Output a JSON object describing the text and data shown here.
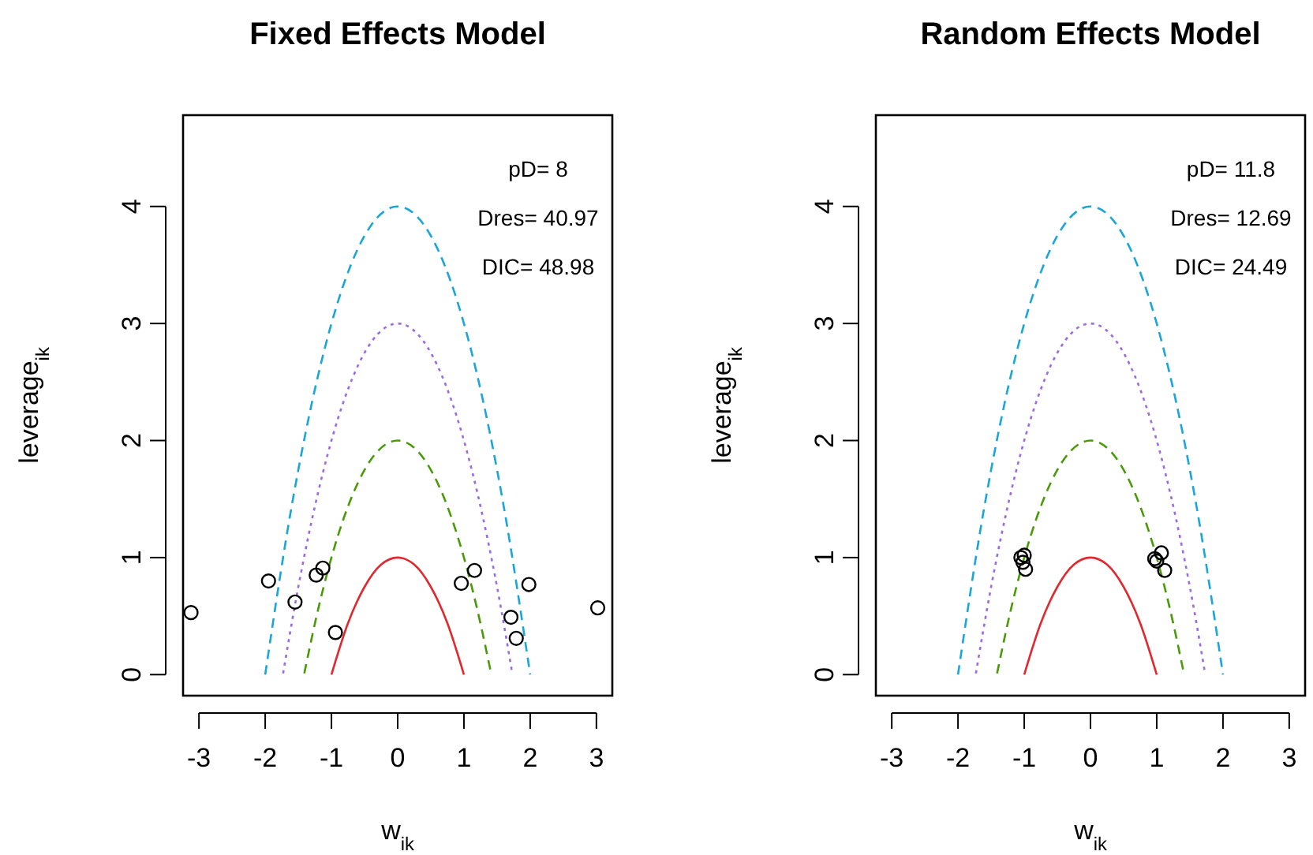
{
  "chart_data": [
    {
      "type": "scatter",
      "title": "Fixed Effects Model",
      "xlabel": "w$_{ik}$",
      "ylabel": "leverage$_{ik}$",
      "xlim": [
        -3.24,
        3.24
      ],
      "ylim": [
        -0.18,
        4.78
      ],
      "xticks": [
        -3,
        -2,
        -1,
        0,
        1,
        2,
        3
      ],
      "yticks": [
        0,
        1,
        2,
        3,
        4
      ],
      "annotations": [
        "pD= 8",
        "Dres= 40.97",
        "DIC= 48.98"
      ],
      "series": [
        {
          "type": "line",
          "color": "#e0282e",
          "line_style": "solid",
          "x": [
            -1,
            -0.75,
            -0.5,
            -0.25,
            0,
            0.25,
            0.5,
            0.75,
            1
          ],
          "values": [
            0,
            0.44,
            0.75,
            0.94,
            1,
            0.94,
            0.75,
            0.44,
            0
          ]
        },
        {
          "type": "line",
          "color": "#4a9a08",
          "line_style": "dashed",
          "x": [
            -1.41,
            -1.2,
            -0.9,
            -0.6,
            -0.3,
            0,
            0.3,
            0.6,
            0.9,
            1.2,
            1.41
          ],
          "values": [
            0.01,
            0.56,
            1.19,
            1.64,
            1.91,
            2,
            1.91,
            1.64,
            1.19,
            0.56,
            0.01
          ]
        },
        {
          "type": "line",
          "color": "#9b6be0",
          "line_style": "dotted",
          "x": [
            -1.73,
            -1.5,
            -1.2,
            -0.9,
            -0.6,
            -0.3,
            0,
            0.3,
            0.6,
            0.9,
            1.2,
            1.5,
            1.73
          ],
          "values": [
            0.01,
            0.75,
            1.56,
            2.19,
            2.64,
            2.91,
            3,
            2.91,
            2.64,
            2.19,
            1.56,
            0.75,
            0.01
          ]
        },
        {
          "type": "line",
          "color": "#1aa6d8",
          "line_style": "dashed",
          "x": [
            -2,
            -1.6,
            -1.2,
            -0.8,
            -0.4,
            0,
            0.4,
            0.8,
            1.2,
            1.6,
            2
          ],
          "values": [
            0,
            1.44,
            2.56,
            3.36,
            3.84,
            4,
            3.84,
            3.36,
            2.56,
            1.44,
            0
          ]
        },
        {
          "color": "#000000",
          "marker": "circle",
          "x": [
            -3.12,
            -1.95,
            -1.55,
            -1.23,
            -1.13,
            -0.94,
            0.96,
            1.16,
            1.98,
            1.71,
            1.79,
            3.02
          ],
          "values": [
            0.53,
            0.8,
            0.62,
            0.85,
            0.91,
            0.36,
            0.78,
            0.89,
            0.77,
            0.49,
            0.31,
            0.57
          ]
        }
      ]
    },
    {
      "type": "scatter",
      "title": "Random Effects Model",
      "xlabel": "w$_{ik}$",
      "ylabel": "leverage$_{ik}$",
      "xlim": [
        -3.24,
        3.24
      ],
      "ylim": [
        -0.18,
        4.78
      ],
      "xticks": [
        -3,
        -2,
        -1,
        0,
        1,
        2,
        3
      ],
      "yticks": [
        0,
        1,
        2,
        3,
        4
      ],
      "annotations": [
        "pD= 11.8",
        "Dres= 12.69",
        "DIC= 24.49"
      ],
      "series": [
        {
          "type": "line",
          "color": "#e0282e",
          "line_style": "solid",
          "x": [
            -1,
            -0.75,
            -0.5,
            -0.25,
            0,
            0.25,
            0.5,
            0.75,
            1
          ],
          "values": [
            0,
            0.44,
            0.75,
            0.94,
            1,
            0.94,
            0.75,
            0.44,
            0
          ]
        },
        {
          "type": "line",
          "color": "#4a9a08",
          "line_style": "dashed",
          "x": [
            -1.41,
            -1.2,
            -0.9,
            -0.6,
            -0.3,
            0,
            0.3,
            0.6,
            0.9,
            1.2,
            1.41
          ],
          "values": [
            0.01,
            0.56,
            1.19,
            1.64,
            1.91,
            2,
            1.91,
            1.64,
            1.19,
            0.56,
            0.01
          ]
        },
        {
          "type": "line",
          "color": "#9b6be0",
          "line_style": "dotted",
          "x": [
            -1.73,
            -1.5,
            -1.2,
            -0.9,
            -0.6,
            -0.3,
            0,
            0.3,
            0.6,
            0.9,
            1.2,
            1.5,
            1.73
          ],
          "values": [
            0.01,
            0.75,
            1.56,
            2.19,
            2.64,
            2.91,
            3,
            2.91,
            2.64,
            2.19,
            1.56,
            0.75,
            0.01
          ]
        },
        {
          "type": "line",
          "color": "#1aa6d8",
          "line_style": "dashed",
          "x": [
            -2,
            -1.6,
            -1.2,
            -0.8,
            -0.4,
            0,
            0.4,
            0.8,
            1.2,
            1.6,
            2
          ],
          "values": [
            0,
            1.44,
            2.56,
            3.36,
            3.84,
            4,
            3.84,
            3.36,
            2.56,
            1.44,
            0
          ]
        },
        {
          "color": "#000000",
          "marker": "circle",
          "x": [
            -1.05,
            -1.02,
            -0.98,
            -1.0,
            0.97,
            1.0,
            1.07,
            1.12
          ],
          "values": [
            1.0,
            0.96,
            0.9,
            1.02,
            0.99,
            0.97,
            1.04,
            0.89
          ]
        }
      ]
    }
  ]
}
